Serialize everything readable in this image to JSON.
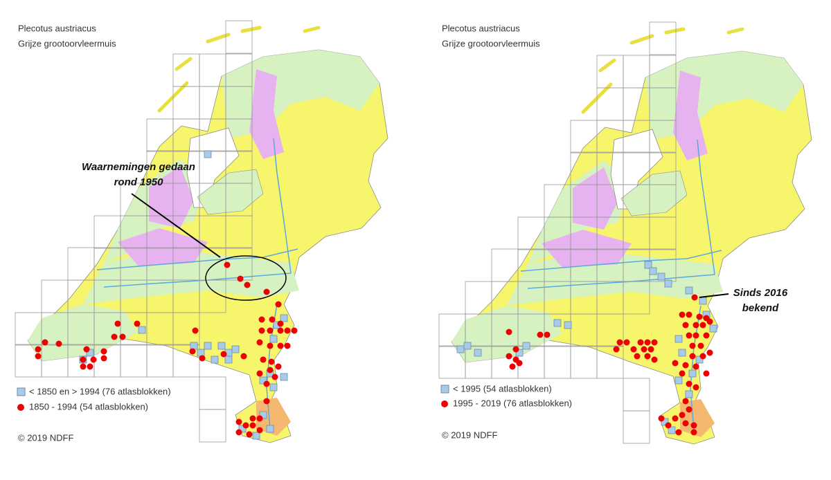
{
  "maps": [
    {
      "title": "Plecotus austriacus",
      "subtitle": "Grijze grootoorvleermuis",
      "legend": [
        {
          "label": "< 1850 en > 1994   (76 atlasblokken)"
        },
        {
          "label": "1850 - 1994 (54 atlasblokken)"
        }
      ],
      "annotation": [
        "Waarnemingen gedaan",
        "rond 1950"
      ],
      "copyright": "© 2019 NDFF"
    },
    {
      "title": "Plecotus austriacus",
      "subtitle": "Grijze grootoorvleermuis",
      "legend": [
        {
          "label": "< 1995   (54 atlasblokken)"
        },
        {
          "label": "1995 - 2019 (76 atlasblokken)"
        }
      ],
      "annotation": [
        "Sinds 2016",
        "bekend"
      ],
      "copyright": "© 2019 NDFF"
    }
  ]
}
